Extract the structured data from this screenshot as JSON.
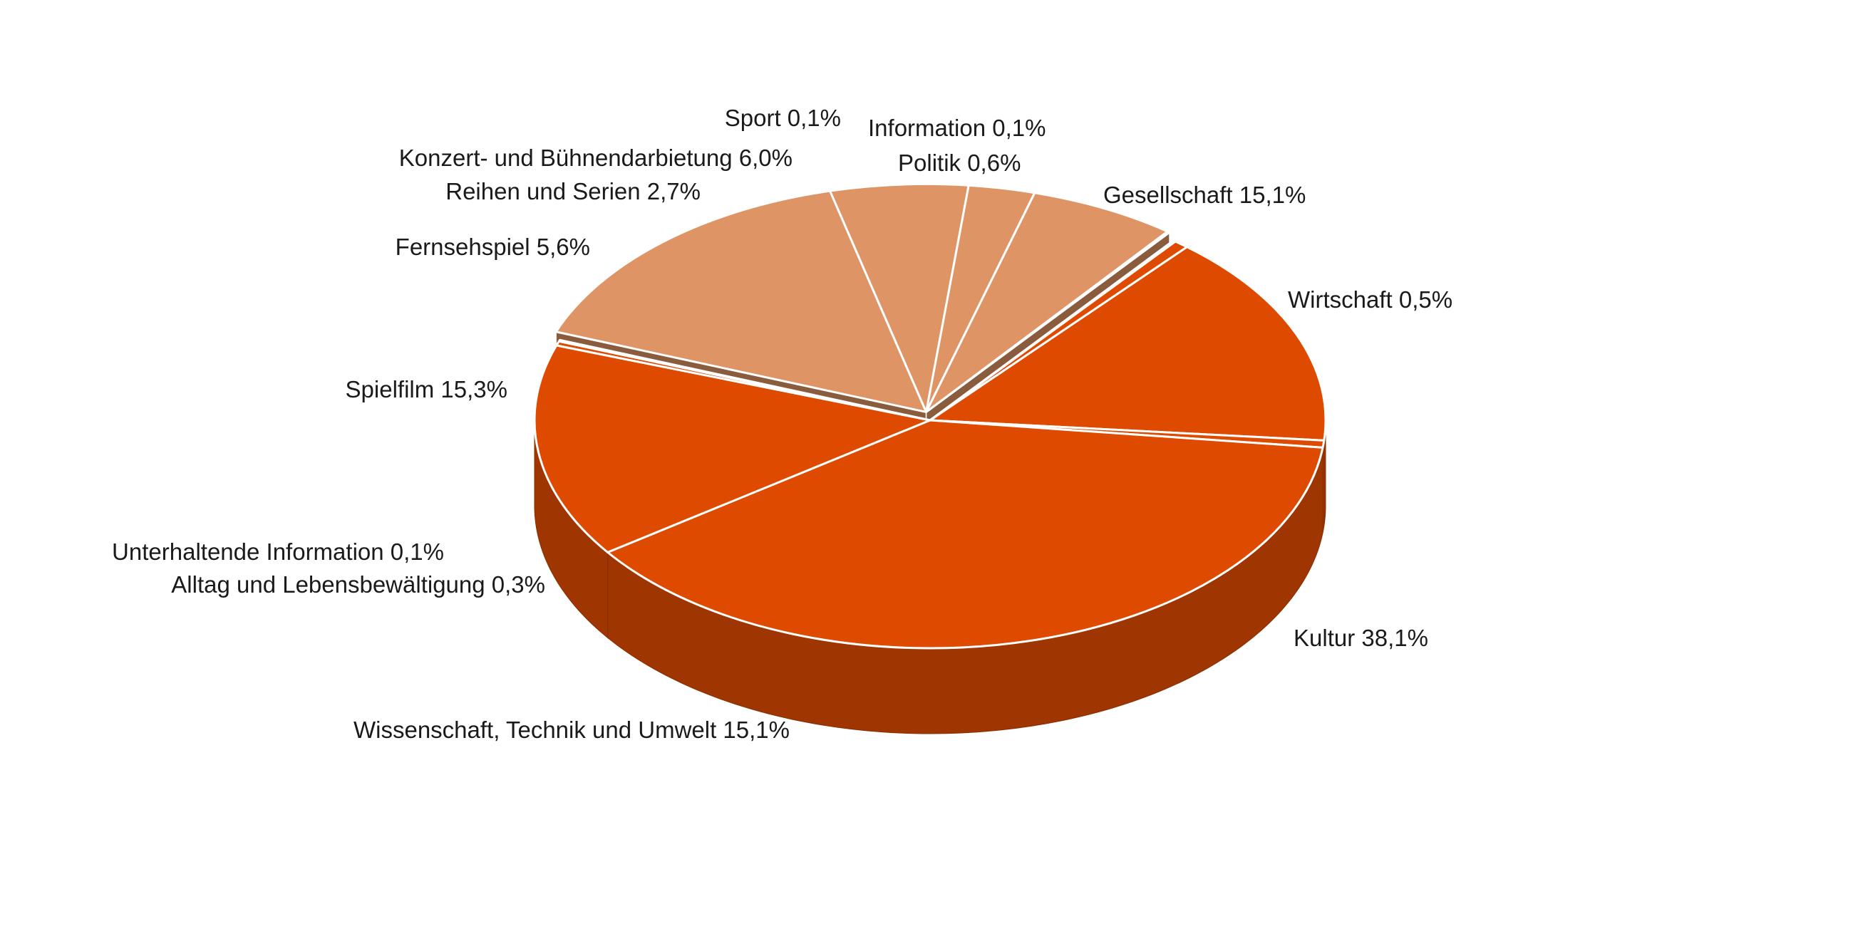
{
  "chart_data": {
    "type": "pie",
    "style": "3d-exploded",
    "colors": {
      "primary_group": "#DD4A00",
      "secondary_group": "#DE9464",
      "separator": "#ffffff"
    },
    "slices": [
      {
        "label": "Gesellschaft",
        "value": 15.1,
        "value_label": "15,1%",
        "group": "primary"
      },
      {
        "label": "Wirtschaft",
        "value": 0.5,
        "value_label": "0,5%",
        "group": "primary"
      },
      {
        "label": "Kultur",
        "value": 38.1,
        "value_label": "38,1%",
        "group": "primary"
      },
      {
        "label": "Wissenschaft, Technik und Umwelt",
        "value": 15.1,
        "value_label": "15,1%",
        "group": "primary"
      },
      {
        "label": "Alltag und Lebensbewältigung",
        "value": 0.3,
        "value_label": "0,3%",
        "group": "primary"
      },
      {
        "label": "Unterhaltende Information",
        "value": 0.1,
        "value_label": "0,1%",
        "group": "primary"
      },
      {
        "label": "Spielfilm",
        "value": 15.3,
        "value_label": "15,3%",
        "group": "secondary"
      },
      {
        "label": "Fernsehspiel",
        "value": 5.6,
        "value_label": "5,6%",
        "group": "secondary"
      },
      {
        "label": "Reihen und Serien",
        "value": 2.7,
        "value_label": "2,7%",
        "group": "secondary"
      },
      {
        "label": "Konzert- und Bühnendarbietung",
        "value": 6.0,
        "value_label": "6,0%",
        "group": "secondary"
      },
      {
        "label": "Sport",
        "value": 0.1,
        "value_label": "0,1%",
        "group": "secondary"
      },
      {
        "label": "Information",
        "value": 0.1,
        "value_label": "0,1%",
        "group": "primary"
      },
      {
        "label": "Politik",
        "value": 0.6,
        "value_label": "0,6%",
        "group": "primary"
      }
    ]
  }
}
